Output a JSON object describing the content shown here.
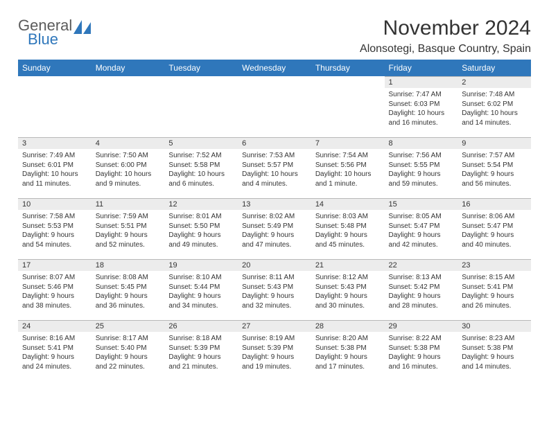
{
  "brand": {
    "word1": "General",
    "word2": "Blue"
  },
  "title": "November 2024",
  "location": "Alonsotegi, Basque Country, Spain",
  "weekdays": [
    "Sunday",
    "Monday",
    "Tuesday",
    "Wednesday",
    "Thursday",
    "Friday",
    "Saturday"
  ],
  "colors": {
    "header_bg": "#2f77bb",
    "header_fg": "#ffffff",
    "daynum_bg": "#ececec",
    "rule": "#b8b8b8",
    "text": "#333333"
  },
  "weeks": [
    [
      {
        "n": "",
        "sr": "",
        "ss": "",
        "dl": ""
      },
      {
        "n": "",
        "sr": "",
        "ss": "",
        "dl": ""
      },
      {
        "n": "",
        "sr": "",
        "ss": "",
        "dl": ""
      },
      {
        "n": "",
        "sr": "",
        "ss": "",
        "dl": ""
      },
      {
        "n": "",
        "sr": "",
        "ss": "",
        "dl": ""
      },
      {
        "n": "1",
        "sr": "Sunrise: 7:47 AM",
        "ss": "Sunset: 6:03 PM",
        "dl": "Daylight: 10 hours and 16 minutes."
      },
      {
        "n": "2",
        "sr": "Sunrise: 7:48 AM",
        "ss": "Sunset: 6:02 PM",
        "dl": "Daylight: 10 hours and 14 minutes."
      }
    ],
    [
      {
        "n": "3",
        "sr": "Sunrise: 7:49 AM",
        "ss": "Sunset: 6:01 PM",
        "dl": "Daylight: 10 hours and 11 minutes."
      },
      {
        "n": "4",
        "sr": "Sunrise: 7:50 AM",
        "ss": "Sunset: 6:00 PM",
        "dl": "Daylight: 10 hours and 9 minutes."
      },
      {
        "n": "5",
        "sr": "Sunrise: 7:52 AM",
        "ss": "Sunset: 5:58 PM",
        "dl": "Daylight: 10 hours and 6 minutes."
      },
      {
        "n": "6",
        "sr": "Sunrise: 7:53 AM",
        "ss": "Sunset: 5:57 PM",
        "dl": "Daylight: 10 hours and 4 minutes."
      },
      {
        "n": "7",
        "sr": "Sunrise: 7:54 AM",
        "ss": "Sunset: 5:56 PM",
        "dl": "Daylight: 10 hours and 1 minute."
      },
      {
        "n": "8",
        "sr": "Sunrise: 7:56 AM",
        "ss": "Sunset: 5:55 PM",
        "dl": "Daylight: 9 hours and 59 minutes."
      },
      {
        "n": "9",
        "sr": "Sunrise: 7:57 AM",
        "ss": "Sunset: 5:54 PM",
        "dl": "Daylight: 9 hours and 56 minutes."
      }
    ],
    [
      {
        "n": "10",
        "sr": "Sunrise: 7:58 AM",
        "ss": "Sunset: 5:53 PM",
        "dl": "Daylight: 9 hours and 54 minutes."
      },
      {
        "n": "11",
        "sr": "Sunrise: 7:59 AM",
        "ss": "Sunset: 5:51 PM",
        "dl": "Daylight: 9 hours and 52 minutes."
      },
      {
        "n": "12",
        "sr": "Sunrise: 8:01 AM",
        "ss": "Sunset: 5:50 PM",
        "dl": "Daylight: 9 hours and 49 minutes."
      },
      {
        "n": "13",
        "sr": "Sunrise: 8:02 AM",
        "ss": "Sunset: 5:49 PM",
        "dl": "Daylight: 9 hours and 47 minutes."
      },
      {
        "n": "14",
        "sr": "Sunrise: 8:03 AM",
        "ss": "Sunset: 5:48 PM",
        "dl": "Daylight: 9 hours and 45 minutes."
      },
      {
        "n": "15",
        "sr": "Sunrise: 8:05 AM",
        "ss": "Sunset: 5:47 PM",
        "dl": "Daylight: 9 hours and 42 minutes."
      },
      {
        "n": "16",
        "sr": "Sunrise: 8:06 AM",
        "ss": "Sunset: 5:47 PM",
        "dl": "Daylight: 9 hours and 40 minutes."
      }
    ],
    [
      {
        "n": "17",
        "sr": "Sunrise: 8:07 AM",
        "ss": "Sunset: 5:46 PM",
        "dl": "Daylight: 9 hours and 38 minutes."
      },
      {
        "n": "18",
        "sr": "Sunrise: 8:08 AM",
        "ss": "Sunset: 5:45 PM",
        "dl": "Daylight: 9 hours and 36 minutes."
      },
      {
        "n": "19",
        "sr": "Sunrise: 8:10 AM",
        "ss": "Sunset: 5:44 PM",
        "dl": "Daylight: 9 hours and 34 minutes."
      },
      {
        "n": "20",
        "sr": "Sunrise: 8:11 AM",
        "ss": "Sunset: 5:43 PM",
        "dl": "Daylight: 9 hours and 32 minutes."
      },
      {
        "n": "21",
        "sr": "Sunrise: 8:12 AM",
        "ss": "Sunset: 5:43 PM",
        "dl": "Daylight: 9 hours and 30 minutes."
      },
      {
        "n": "22",
        "sr": "Sunrise: 8:13 AM",
        "ss": "Sunset: 5:42 PM",
        "dl": "Daylight: 9 hours and 28 minutes."
      },
      {
        "n": "23",
        "sr": "Sunrise: 8:15 AM",
        "ss": "Sunset: 5:41 PM",
        "dl": "Daylight: 9 hours and 26 minutes."
      }
    ],
    [
      {
        "n": "24",
        "sr": "Sunrise: 8:16 AM",
        "ss": "Sunset: 5:41 PM",
        "dl": "Daylight: 9 hours and 24 minutes."
      },
      {
        "n": "25",
        "sr": "Sunrise: 8:17 AM",
        "ss": "Sunset: 5:40 PM",
        "dl": "Daylight: 9 hours and 22 minutes."
      },
      {
        "n": "26",
        "sr": "Sunrise: 8:18 AM",
        "ss": "Sunset: 5:39 PM",
        "dl": "Daylight: 9 hours and 21 minutes."
      },
      {
        "n": "27",
        "sr": "Sunrise: 8:19 AM",
        "ss": "Sunset: 5:39 PM",
        "dl": "Daylight: 9 hours and 19 minutes."
      },
      {
        "n": "28",
        "sr": "Sunrise: 8:20 AM",
        "ss": "Sunset: 5:38 PM",
        "dl": "Daylight: 9 hours and 17 minutes."
      },
      {
        "n": "29",
        "sr": "Sunrise: 8:22 AM",
        "ss": "Sunset: 5:38 PM",
        "dl": "Daylight: 9 hours and 16 minutes."
      },
      {
        "n": "30",
        "sr": "Sunrise: 8:23 AM",
        "ss": "Sunset: 5:38 PM",
        "dl": "Daylight: 9 hours and 14 minutes."
      }
    ]
  ]
}
